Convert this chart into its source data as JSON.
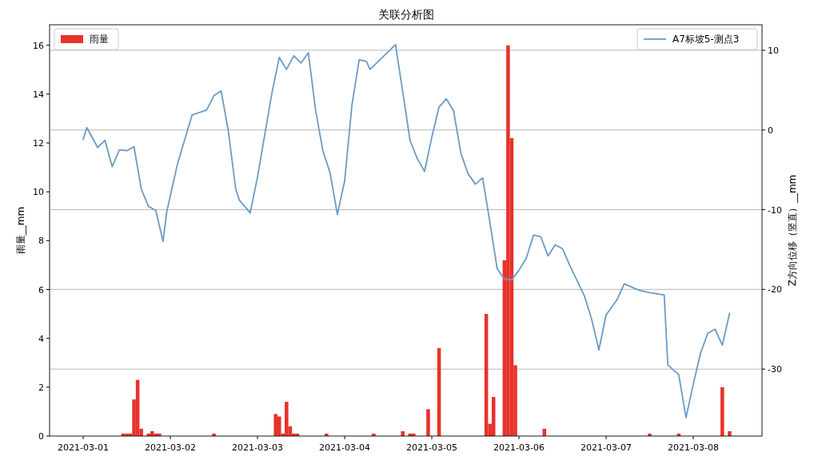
{
  "chart_data": {
    "type": "bar",
    "title": "关联分析图",
    "ylabel": "雨量__mm",
    "y2label": "Z方向位移（竖直）__mm",
    "xlim": [
      "2021-02-28T14:45",
      "2021-03-08T18:56"
    ],
    "xticks": [
      "2021-03-01",
      "2021-03-02",
      "2021-03-03",
      "2021-03-04",
      "2021-03-05",
      "2021-03-06",
      "2021-03-07",
      "2021-03-08"
    ],
    "ylim": [
      0,
      16.84
    ],
    "yticks": [
      0,
      2,
      4,
      6,
      8,
      10,
      12,
      14,
      16
    ],
    "y2lim": [
      -38.4,
      13.2
    ],
    "y2ticks": [
      -30,
      -20,
      -10,
      0,
      10
    ],
    "grid": "y2",
    "legend": "top",
    "series": [
      {
        "name": "雨量",
        "color": "#e8322a",
        "x": [
          "2021-03-01T11:00",
          "2021-03-01T12:00",
          "2021-03-01T13:00",
          "2021-03-01T14:00",
          "2021-03-01T15:00",
          "2021-03-01T16:00",
          "2021-03-01T18:00",
          "2021-03-01T19:00",
          "2021-03-01T20:00",
          "2021-03-01T21:00",
          "2021-03-02T12:00",
          "2021-03-03T05:00",
          "2021-03-03T06:00",
          "2021-03-03T07:00",
          "2021-03-03T08:00",
          "2021-03-03T09:00",
          "2021-03-03T10:00",
          "2021-03-03T11:00",
          "2021-03-03T19:00",
          "2021-03-04T08:00",
          "2021-03-04T16:00",
          "2021-03-04T18:00",
          "2021-03-04T19:00",
          "2021-03-04T23:00",
          "2021-03-05T02:00",
          "2021-03-05T15:00",
          "2021-03-05T16:00",
          "2021-03-05T17:00",
          "2021-03-05T20:00",
          "2021-03-05T21:00",
          "2021-03-05T22:00",
          "2021-03-05T23:00",
          "2021-03-06T07:00",
          "2021-03-07T12:00",
          "2021-03-07T20:00",
          "2021-03-08T08:00",
          "2021-03-08T10:00"
        ],
        "values": [
          0.1,
          0.1,
          0.1,
          1.5,
          2.3,
          0.3,
          0.1,
          0.2,
          0.1,
          0.1,
          0.1,
          0.9,
          0.8,
          0.1,
          1.4,
          0.4,
          0.1,
          0.1,
          0.1,
          0.1,
          0.2,
          0.1,
          0.1,
          1.1,
          3.6,
          5.0,
          0.5,
          1.6,
          7.2,
          16.0,
          12.2,
          2.9,
          0.3,
          0.1,
          0.1,
          2.0,
          0.2
        ]
      },
      {
        "name": "A7标坡5-测点3",
        "type": "line",
        "axis": "y2",
        "color": "#6b9bc3",
        "x": [
          "2021-03-01T00:00",
          "2021-03-01T01:00",
          "2021-03-01T04:00",
          "2021-03-01T06:00",
          "2021-03-01T08:00",
          "2021-03-01T10:00",
          "2021-03-01T12:00",
          "2021-03-01T14:00",
          "2021-03-01T16:00",
          "2021-03-01T18:00",
          "2021-03-01T20:00",
          "2021-03-01T22:00",
          "2021-03-01T23:00",
          "2021-03-02T02:00",
          "2021-03-02T06:00",
          "2021-03-02T10:00",
          "2021-03-02T12:00",
          "2021-03-02T14:00",
          "2021-03-02T16:00",
          "2021-03-02T18:00",
          "2021-03-02T19:00",
          "2021-03-02T22:00",
          "2021-03-03T00:00",
          "2021-03-03T04:00",
          "2021-03-03T06:00",
          "2021-03-03T08:00",
          "2021-03-03T10:00",
          "2021-03-03T12:00",
          "2021-03-03T14:00",
          "2021-03-03T16:00",
          "2021-03-03T18:00",
          "2021-03-03T20:00",
          "2021-03-03T22:00",
          "2021-03-04T00:00",
          "2021-03-04T02:00",
          "2021-03-04T04:00",
          "2021-03-04T06:00",
          "2021-03-04T07:00",
          "2021-03-04T14:00",
          "2021-03-04T16:00",
          "2021-03-04T18:00",
          "2021-03-04T20:00",
          "2021-03-04T22:00",
          "2021-03-05T00:00",
          "2021-03-05T02:00",
          "2021-03-05T04:00",
          "2021-03-05T06:00",
          "2021-03-05T08:00",
          "2021-03-05T10:00",
          "2021-03-05T12:00",
          "2021-03-05T14:00",
          "2021-03-05T16:00",
          "2021-03-05T18:00",
          "2021-03-05T20:00",
          "2021-03-05T22:00",
          "2021-03-06T00:00",
          "2021-03-06T02:00",
          "2021-03-06T04:00",
          "2021-03-06T06:00",
          "2021-03-06T08:00",
          "2021-03-06T10:00",
          "2021-03-06T12:00",
          "2021-03-06T14:00",
          "2021-03-06T18:00",
          "2021-03-06T20:00",
          "2021-03-06T22:00",
          "2021-03-07T00:00",
          "2021-03-07T03:00",
          "2021-03-07T05:00",
          "2021-03-07T09:00",
          "2021-03-07T12:00",
          "2021-03-07T16:00",
          "2021-03-07T17:00",
          "2021-03-07T20:00",
          "2021-03-07T22:00",
          "2021-03-08T00:00",
          "2021-03-08T02:00",
          "2021-03-08T04:00",
          "2021-03-08T06:00",
          "2021-03-08T08:00",
          "2021-03-08T10:00"
        ],
        "values": [
          -1.2,
          0.3,
          -2.2,
          -1.3,
          -4.6,
          -2.5,
          -2.6,
          -2.1,
          -7.4,
          -9.6,
          -10.1,
          -14.0,
          -10.3,
          -4.2,
          1.9,
          2.5,
          4.3,
          4.9,
          -0.2,
          -7.4,
          -8.8,
          -10.4,
          -5.9,
          4.7,
          9.1,
          7.6,
          9.3,
          8.4,
          9.7,
          2.5,
          -2.6,
          -5.4,
          -10.6,
          -6.4,
          3.1,
          8.8,
          8.6,
          7.6,
          10.7,
          4.8,
          -1.3,
          -3.6,
          -5.2,
          -0.9,
          2.9,
          3.9,
          2.4,
          -2.9,
          -5.5,
          -6.8,
          -6.0,
          -11.6,
          -17.4,
          -18.7,
          -18.8,
          -17.6,
          -16.1,
          -13.2,
          -13.4,
          -15.8,
          -14.4,
          -14.9,
          -17.0,
          -20.8,
          -23.7,
          -27.6,
          -23.2,
          -21.3,
          -19.3,
          -20.1,
          -20.4,
          -20.7,
          -29.5,
          -30.7,
          -36.1,
          -31.9,
          -28.0,
          -25.5,
          -25.0,
          -27.0,
          -23.0
        ]
      }
    ]
  }
}
